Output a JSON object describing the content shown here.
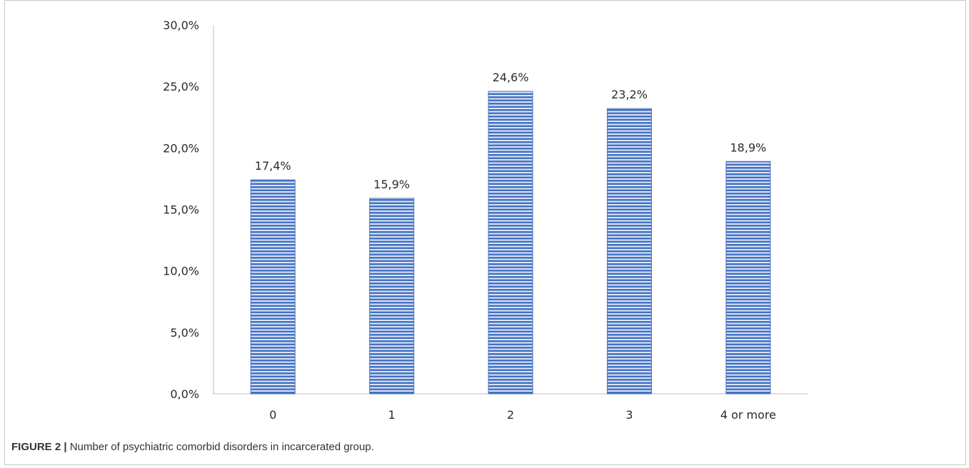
{
  "chart_data": {
    "type": "bar",
    "categories": [
      "0",
      "1",
      "2",
      "3",
      "4 or more"
    ],
    "values": [
      17.4,
      15.9,
      24.6,
      23.2,
      18.9
    ],
    "data_labels": [
      "17,4%",
      "15,9%",
      "24,6%",
      "23,2%",
      "18,9%"
    ],
    "ylim": [
      0,
      30
    ],
    "yticks": [
      0,
      5,
      10,
      15,
      20,
      25,
      30
    ],
    "ytick_labels": [
      "0,0%",
      "5,0%",
      "10,0%",
      "15,0%",
      "20,0%",
      "25,0%",
      "30,0%"
    ],
    "grid": false,
    "legend": "none",
    "bar_color": "#4472c4",
    "bar_fill_pattern": "horizontal-stripes"
  },
  "caption": {
    "label": "FIGURE 2 |",
    "text": "Number of psychiatric comorbid disorders in incarcerated group."
  }
}
